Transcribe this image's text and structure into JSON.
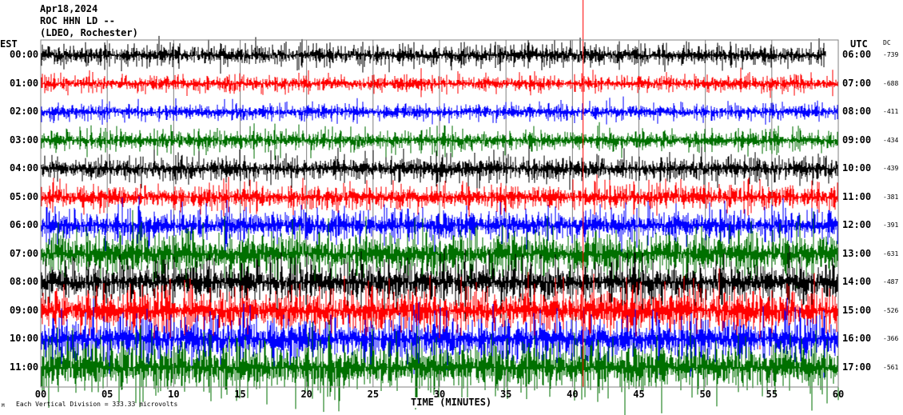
{
  "header": {
    "date": "Apr18,2024",
    "station": "ROC HHN LD --",
    "network": "(LDEO, Rochester)"
  },
  "left_axis_label": "EST",
  "right_axis_label": "UTC",
  "dc_label": "DC",
  "footer": {
    "scale_text": "Each Vertical Division = 333.33 microvolts",
    "x_axis_title": "TIME (MINUTES)",
    "corner_mark": "M"
  },
  "colors": {
    "cycle": [
      "#000000",
      "#ff0000",
      "#0000ff",
      "#007000"
    ],
    "marker": "#ff0000",
    "grid": "#808080"
  },
  "chart_data": {
    "type": "line",
    "title": "",
    "xlabel": "TIME (MINUTES)",
    "x_ticks": [
      "00",
      "05",
      "10",
      "15",
      "20",
      "25",
      "30",
      "35",
      "40",
      "45",
      "50",
      "55",
      "60"
    ],
    "xlim": [
      0,
      60
    ],
    "grid": "vertical every 5 minutes",
    "series": [
      {
        "est": "00:00",
        "utc": "06:00",
        "dc": "-739",
        "color": "#000000"
      },
      {
        "est": "01:00",
        "utc": "07:00",
        "dc": "-688",
        "color": "#ff0000"
      },
      {
        "est": "02:00",
        "utc": "08:00",
        "dc": "-411",
        "color": "#0000ff"
      },
      {
        "est": "03:00",
        "utc": "09:00",
        "dc": "-434",
        "color": "#007000"
      },
      {
        "est": "04:00",
        "utc": "10:00",
        "dc": "-439",
        "color": "#000000"
      },
      {
        "est": "05:00",
        "utc": "11:00",
        "dc": "-381",
        "color": "#ff0000"
      },
      {
        "est": "06:00",
        "utc": "12:00",
        "dc": "-391",
        "color": "#0000ff"
      },
      {
        "est": "07:00",
        "utc": "13:00",
        "dc": "-631",
        "color": "#007000"
      },
      {
        "est": "08:00",
        "utc": "14:00",
        "dc": "-487",
        "color": "#000000"
      },
      {
        "est": "09:00",
        "utc": "15:00",
        "dc": "-526",
        "color": "#ff0000"
      },
      {
        "est": "10:00",
        "utc": "16:00",
        "dc": "-366",
        "color": "#0000ff"
      },
      {
        "est": "11:00",
        "utc": "17:00",
        "dc": "-561",
        "color": "#007000"
      }
    ],
    "marker_minute": 40.8
  }
}
